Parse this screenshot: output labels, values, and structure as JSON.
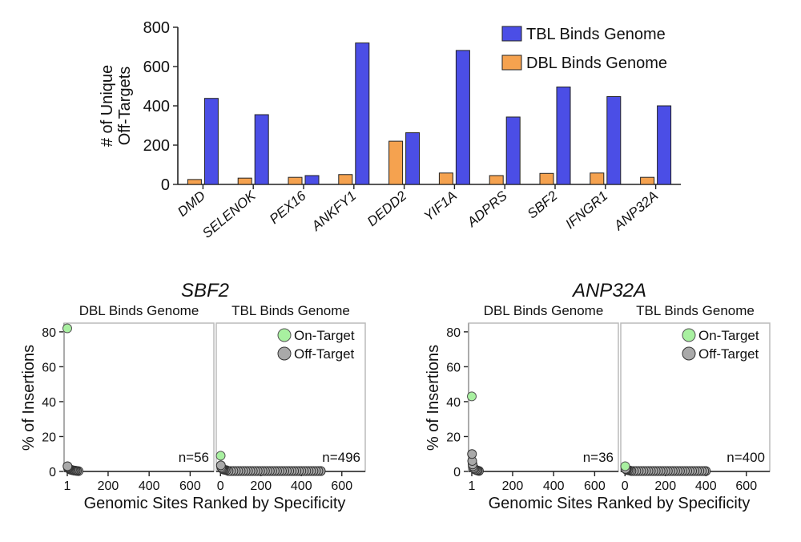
{
  "colors": {
    "tbl": "#4b4ee6",
    "dbl": "#f5a24f",
    "on_target": "#a8f0a0",
    "off_target": "#a9a9a9",
    "axis": "#222222",
    "panel_border": "#bbbbbb"
  },
  "chart_data": [
    {
      "type": "bar",
      "ylabel_line1": "# of Unique",
      "ylabel_line2": "Off-Targets",
      "ylim": [
        0,
        800
      ],
      "yticks": [
        0,
        200,
        400,
        600,
        800
      ],
      "categories": [
        "DMD",
        "SELENOK",
        "PEX16",
        "ANKFY1",
        "DEDD2",
        "YIF1A",
        "ADPRS",
        "SBF2",
        "IFNGR1",
        "ANP32A"
      ],
      "series": [
        {
          "name": "DBL Binds Genome",
          "color_key": "dbl",
          "values": [
            25,
            32,
            36,
            50,
            220,
            58,
            45,
            56,
            58,
            36
          ]
        },
        {
          "name": "TBL Binds Genome",
          "color_key": "tbl",
          "values": [
            438,
            355,
            45,
            720,
            263,
            682,
            343,
            496,
            447,
            400
          ]
        }
      ],
      "legend": [
        "TBL Binds Genome",
        "DBL Binds Genome"
      ],
      "legend_position": "top-right"
    },
    {
      "type": "scatter",
      "title": "SBF2",
      "ylabel": "% of Insertions",
      "xlabel": "Genomic Sites Ranked by Specificity",
      "ylim": [
        0,
        85
      ],
      "yticks": [
        0,
        20,
        40,
        60,
        80
      ],
      "legend": [
        "On-Target",
        "Off-Target"
      ],
      "panels": [
        {
          "title": "DBL Binds Genome",
          "xlim": [
            1,
            700
          ],
          "xticks": [
            1,
            200,
            400,
            600
          ],
          "n_label": "n=56",
          "on_target": [
            [
              1,
              82
            ]
          ],
          "off_target": [
            [
              2,
              3
            ],
            [
              4,
              2.5
            ],
            [
              6,
              2
            ],
            [
              9,
              1.6
            ],
            [
              13,
              1.2
            ],
            [
              18,
              1
            ],
            [
              24,
              0.8
            ],
            [
              30,
              0.6
            ],
            [
              36,
              0.5
            ],
            [
              42,
              0.4
            ],
            [
              48,
              0.3
            ],
            [
              56,
              0.2
            ]
          ]
        },
        {
          "title": "TBL Binds Genome",
          "xlim": [
            -5,
            700
          ],
          "xticks": [
            0,
            200,
            400,
            600
          ],
          "n_label": "n=496",
          "on_target": [
            [
              1,
              9
            ]
          ],
          "off_target_first": [
            [
              2,
              3.5
            ],
            [
              4,
              2.5
            ],
            [
              7,
              1.8
            ],
            [
              11,
              1.4
            ],
            [
              16,
              1.1
            ],
            [
              22,
              0.9
            ],
            [
              30,
              0.7
            ]
          ],
          "off_target_tail": {
            "start": 40,
            "end": 496,
            "step": 12,
            "y": 0.25
          }
        }
      ]
    },
    {
      "type": "scatter",
      "title": "ANP32A",
      "ylabel": "% of Insertions",
      "xlabel": "Genomic Sites Ranked by Specificity",
      "ylim": [
        0,
        85
      ],
      "yticks": [
        0,
        20,
        40,
        60,
        80
      ],
      "legend": [
        "On-Target",
        "Off-Target"
      ],
      "panels": [
        {
          "title": "DBL Binds Genome",
          "xlim": [
            1,
            700
          ],
          "xticks": [
            1,
            200,
            400,
            600
          ],
          "n_label": "n=36",
          "on_target": [
            [
              1,
              43
            ]
          ],
          "off_target": [
            [
              2,
              10
            ],
            [
              3,
              6
            ],
            [
              5,
              4
            ],
            [
              7,
              3
            ],
            [
              10,
              2
            ],
            [
              14,
              1.5
            ],
            [
              19,
              1
            ],
            [
              25,
              0.7
            ],
            [
              30,
              0.5
            ],
            [
              36,
              0.3
            ]
          ]
        },
        {
          "title": "TBL Binds Genome",
          "xlim": [
            -5,
            700
          ],
          "xticks": [
            0,
            200,
            400,
            600
          ],
          "n_label": "n=400",
          "on_target": [
            [
              1,
              3
            ]
          ],
          "off_target_first": [
            [
              3,
              1.5
            ],
            [
              6,
              1.1
            ],
            [
              10,
              0.9
            ],
            [
              16,
              0.7
            ],
            [
              24,
              0.5
            ]
          ],
          "off_target_tail": {
            "start": 32,
            "end": 400,
            "step": 12,
            "y": 0.25
          }
        }
      ]
    }
  ]
}
